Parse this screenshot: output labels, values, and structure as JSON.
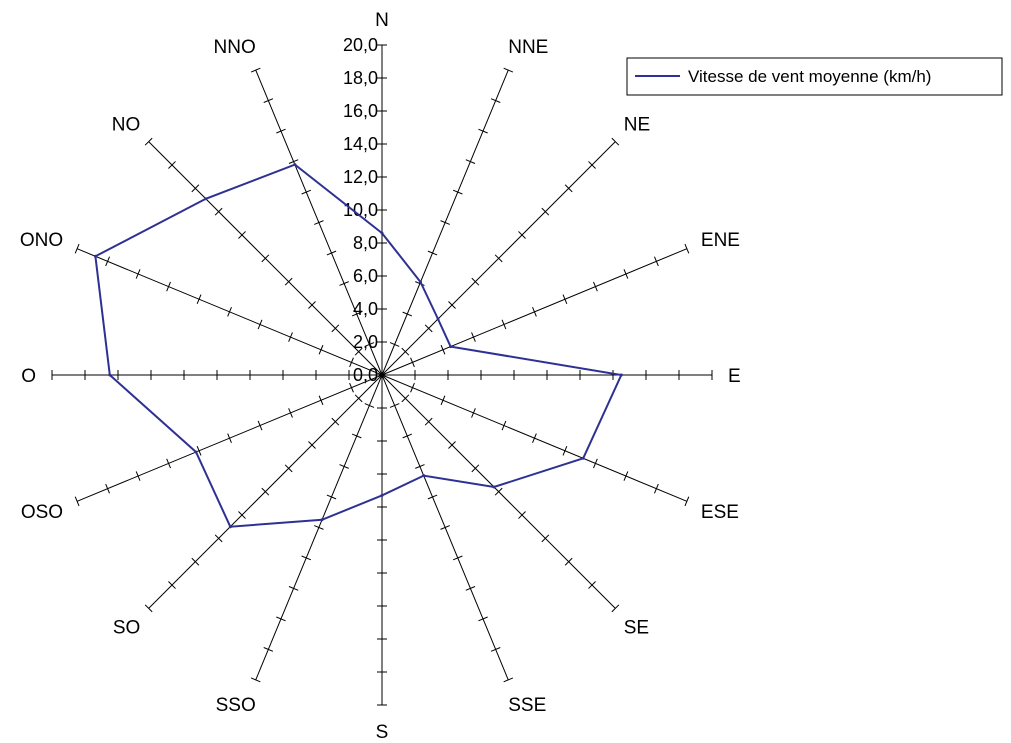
{
  "chart_data": {
    "type": "radar",
    "directions": [
      "N",
      "NNE",
      "NE",
      "ENE",
      "E",
      "ESE",
      "SE",
      "SSE",
      "S",
      "SSO",
      "SO",
      "OSO",
      "O",
      "ONO",
      "NO",
      "NNO"
    ],
    "series": [
      {
        "name": "Vitesse de vent moyenne (km/h)",
        "color": "#2e3192",
        "values": [
          8.6,
          6.1,
          4.8,
          4.5,
          14.5,
          13.2,
          9.6,
          6.6,
          7.3,
          9.5,
          13.0,
          12.2,
          16.5,
          18.8,
          15.1,
          13.8
        ]
      }
    ],
    "r_range": [
      0,
      20
    ],
    "r_major_step": 2,
    "tick_labels": [
      "0,0",
      "2,0",
      "4,0",
      "6,0",
      "8,0",
      "10,0",
      "12,0",
      "14,0",
      "16,0",
      "18,0",
      "20,0"
    ],
    "legend_position": "top-right",
    "grid": false
  }
}
